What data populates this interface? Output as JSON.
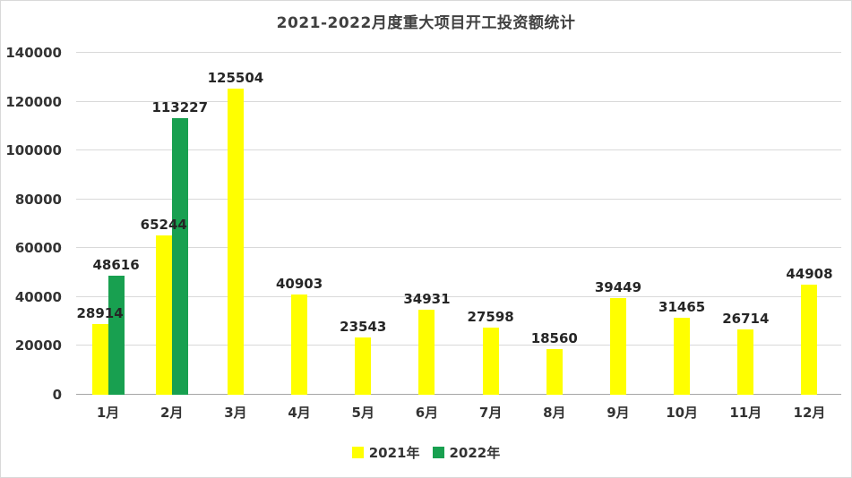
{
  "chart_data": {
    "type": "bar",
    "title": "2021-2022月度重大项目开工投资额统计",
    "categories": [
      "1月",
      "2月",
      "3月",
      "4月",
      "5月",
      "6月",
      "7月",
      "8月",
      "9月",
      "10月",
      "11月",
      "12月"
    ],
    "series": [
      {
        "name": "2021年",
        "color": "#FFFF00",
        "values": [
          28914,
          65244,
          125504,
          40903,
          23543,
          34931,
          27598,
          18560,
          39449,
          31465,
          26714,
          44908
        ]
      },
      {
        "name": "2022年",
        "color": "#18A050",
        "values": [
          48616,
          113227,
          null,
          null,
          null,
          null,
          null,
          null,
          null,
          null,
          null,
          null
        ]
      }
    ],
    "ylim": [
      0,
      140000
    ],
    "ytick_interval": 20000,
    "yticks": [
      "0",
      "20000",
      "40000",
      "60000",
      "80000",
      "100000",
      "120000",
      "140000"
    ],
    "grid": true,
    "legend_position": "bottom",
    "colors": {
      "grid": "#d9d9d9",
      "axis_text": "#333333",
      "title_text": "#404040",
      "label_text": "#262626"
    }
  }
}
